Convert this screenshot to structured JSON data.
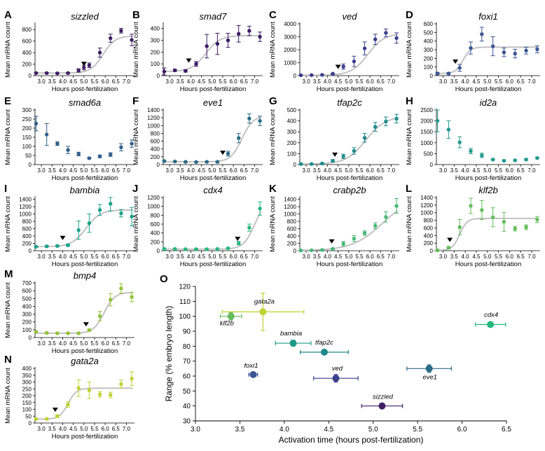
{
  "chart_data": [
    {
      "id": "A",
      "panel_label": "A",
      "gene": "sizzled",
      "type": "scatter",
      "color": "#3f1f62",
      "xlabel": "Hours post-fertilization",
      "ylabel": "Mean mRNA count",
      "xticks": [
        "3.0",
        "3.5",
        "4.0",
        "4.5",
        "5.0",
        "5.5",
        "6.0",
        "6.5",
        "7.0"
      ],
      "yticks": [
        "0",
        "200",
        "400",
        "600",
        "800"
      ],
      "ylim": [
        0,
        900
      ],
      "x": [
        2.75,
        3.25,
        3.75,
        4.25,
        4.75,
        5.0,
        5.25,
        5.75,
        6.25,
        6.75,
        7.25
      ],
      "y": [
        45,
        45,
        40,
        45,
        90,
        140,
        180,
        400,
        650,
        780,
        620
      ],
      "err": [
        8,
        8,
        8,
        10,
        30,
        40,
        40,
        80,
        70,
        40,
        100
      ],
      "fit": {
        "low": 45,
        "high": 690,
        "mid": 5.9,
        "k": 3.5
      },
      "activation": 5.1
    },
    {
      "id": "B",
      "panel_label": "B",
      "gene": "smad7",
      "type": "scatter",
      "color": "#3c1b66",
      "xlabel": "Hours post-fertilization",
      "ylabel": "Mean mRNA count",
      "xticks": [
        "3.0",
        "3.5",
        "4.0",
        "4.5",
        "5.0",
        "5.5",
        "6.0",
        "6.5",
        "7.0"
      ],
      "yticks": [
        "0",
        "100",
        "200",
        "300",
        "400"
      ],
      "ylim": [
        0,
        440
      ],
      "x": [
        2.75,
        3.25,
        3.75,
        4.25,
        4.75,
        5.25,
        5.75,
        6.25,
        6.75,
        7.25
      ],
      "y": [
        35,
        45,
        40,
        100,
        250,
        270,
        300,
        355,
        380,
        330
      ],
      "err": [
        30,
        10,
        10,
        20,
        100,
        90,
        60,
        70,
        40,
        40
      ],
      "fit": {
        "low": 35,
        "high": 340,
        "mid": 4.7,
        "k": 3.0
      },
      "activation": 4.0
    },
    {
      "id": "C",
      "panel_label": "C",
      "gene": "ved",
      "type": "scatter",
      "color": "#3a3f8c",
      "xlabel": "Hours post-fertilization",
      "ylabel": "Mean mRNA count",
      "xticks": [
        "3.0",
        "3.5",
        "4.0",
        "4.5",
        "5.0",
        "5.5",
        "6.0",
        "6.5",
        "7.0"
      ],
      "yticks": [
        "0",
        "1000",
        "2000",
        "3000",
        "4000"
      ],
      "ylim": [
        0,
        4000
      ],
      "x": [
        2.75,
        3.25,
        3.75,
        4.25,
        4.75,
        5.25,
        5.75,
        6.25,
        6.75,
        7.25
      ],
      "y": [
        30,
        40,
        60,
        150,
        700,
        1100,
        2100,
        2800,
        3300,
        2900
      ],
      "err": [
        10,
        10,
        20,
        40,
        200,
        400,
        500,
        400,
        300,
        400
      ],
      "fit": {
        "low": 30,
        "high": 3250,
        "mid": 5.9,
        "k": 2.6
      },
      "activation": 4.6
    },
    {
      "id": "D",
      "panel_label": "D",
      "gene": "foxi1",
      "type": "scatter",
      "color": "#3a5592",
      "xlabel": "Hours post-fertilization",
      "ylabel": "Mean mRNA count",
      "xticks": [
        "3.0",
        "3.5",
        "4.0",
        "4.5",
        "5.0",
        "5.5",
        "6.0",
        "6.5",
        "7.0"
      ],
      "yticks": [
        "0",
        "100",
        "200",
        "300",
        "400",
        "500",
        "600"
      ],
      "ylim": [
        0,
        600
      ],
      "x": [
        2.75,
        3.25,
        3.75,
        4.25,
        4.75,
        5.25,
        5.75,
        6.25,
        6.75,
        7.25
      ],
      "y": [
        25,
        25,
        90,
        320,
        480,
        340,
        270,
        255,
        290,
        305
      ],
      "err": [
        10,
        10,
        40,
        70,
        80,
        110,
        50,
        50,
        40,
        40
      ],
      "fit": {
        "low": 25,
        "high": 330,
        "mid": 3.9,
        "k": 6.0
      },
      "activation": 3.65
    },
    {
      "id": "E",
      "panel_label": "E",
      "gene": "smad6a",
      "type": "scatter",
      "color": "#325f8a",
      "xlabel": "Hours post-fertilization",
      "ylabel": "Mean mRNA count",
      "xticks": [
        "3.0",
        "3.5",
        "4.0",
        "4.5",
        "5.0",
        "5.5",
        "6.0",
        "6.5",
        "7.0"
      ],
      "yticks": [
        "0",
        "50",
        "100",
        "150",
        "200",
        "250",
        "300"
      ],
      "ylim": [
        0,
        300
      ],
      "x": [
        2.75,
        3.25,
        3.75,
        4.25,
        4.75,
        5.25,
        5.75,
        6.25,
        6.75,
        7.25
      ],
      "y": [
        225,
        165,
        115,
        80,
        58,
        35,
        45,
        55,
        95,
        115
      ],
      "err": [
        40,
        60,
        10,
        20,
        10,
        4,
        8,
        10,
        20,
        20
      ],
      "fit": null,
      "activation": null
    },
    {
      "id": "F",
      "panel_label": "F",
      "gene": "eve1",
      "type": "scatter",
      "color": "#2b6a85",
      "xlabel": "Hours post-fertilization",
      "ylabel": "Mean mRNA count",
      "xticks": [
        "3.0",
        "3.5",
        "4.0",
        "4.5",
        "5.0",
        "5.5",
        "6.0",
        "6.5",
        "7.0"
      ],
      "yticks": [
        "0",
        "200",
        "400",
        "600",
        "800",
        "1000",
        "1200",
        "1400"
      ],
      "ylim": [
        0,
        1400
      ],
      "x": [
        2.75,
        3.25,
        3.75,
        4.25,
        4.75,
        5.25,
        5.75,
        6.25,
        6.75,
        7.25
      ],
      "y": [
        90,
        80,
        70,
        65,
        70,
        70,
        280,
        680,
        1180,
        1120
      ],
      "err": [
        10,
        10,
        10,
        10,
        10,
        20,
        60,
        120,
        120,
        120
      ],
      "fit": {
        "low": 70,
        "high": 1250,
        "mid": 6.4,
        "k": 3.8
      },
      "activation": 5.6
    },
    {
      "id": "G",
      "panel_label": "G",
      "gene": "tfap2c",
      "type": "scatter",
      "color": "#1e8a8a",
      "xlabel": "Hours post-fertilization",
      "ylabel": "Mean mRNA count",
      "xticks": [
        "3.0",
        "3.5",
        "4.0",
        "4.5",
        "5.0",
        "5.5",
        "6.0",
        "6.5",
        "7.0"
      ],
      "yticks": [
        "0",
        "100",
        "200",
        "300",
        "400",
        "500"
      ],
      "ylim": [
        0,
        500
      ],
      "x": [
        2.75,
        3.25,
        3.75,
        4.25,
        4.75,
        5.25,
        5.75,
        6.25,
        6.75,
        7.25
      ],
      "y": [
        5,
        5,
        10,
        35,
        75,
        125,
        245,
        345,
        395,
        420
      ],
      "err": [
        2,
        2,
        4,
        10,
        20,
        30,
        40,
        40,
        40,
        40
      ],
      "fit": {
        "low": 5,
        "high": 440,
        "mid": 5.8,
        "k": 2.2
      },
      "activation": 4.45
    },
    {
      "id": "H",
      "panel_label": "H",
      "gene": "id2a",
      "type": "scatter",
      "color": "#219a8c",
      "xlabel": "Hours post-fertilization",
      "ylabel": "Mean mRNA count",
      "xticks": [
        "3.0",
        "3.5",
        "4.0",
        "4.5",
        "5.0",
        "5.5",
        "6.0",
        "6.5",
        "7.0"
      ],
      "yticks": [
        "0",
        "500",
        "1000",
        "1500",
        "2000",
        "2500"
      ],
      "ylim": [
        0,
        2500
      ],
      "x": [
        2.75,
        3.25,
        3.75,
        4.25,
        4.75,
        5.25,
        5.75,
        6.25,
        6.75,
        7.25
      ],
      "y": [
        2000,
        1600,
        1020,
        620,
        420,
        230,
        175,
        195,
        230,
        300
      ],
      "err": [
        500,
        400,
        250,
        120,
        100,
        30,
        30,
        30,
        40,
        40
      ],
      "fit": null,
      "activation": null
    },
    {
      "id": "I",
      "panel_label": "I",
      "gene": "bambia",
      "type": "scatter",
      "color": "#1aa289",
      "xlabel": "Hours post-fertilization",
      "ylabel": "Mean mRNA count",
      "xticks": [
        "3.0",
        "3.5",
        "4.0",
        "4.5",
        "5.0",
        "5.5",
        "6.0",
        "6.5",
        "7.0"
      ],
      "yticks": [
        "0",
        "200",
        "400",
        "600",
        "800",
        "1000",
        "1200",
        "1400"
      ],
      "ylim": [
        0,
        1450
      ],
      "x": [
        2.75,
        3.25,
        3.75,
        4.25,
        4.75,
        5.25,
        5.75,
        6.25,
        6.75,
        7.25
      ],
      "y": [
        110,
        120,
        130,
        150,
        560,
        750,
        1110,
        1280,
        1020,
        930
      ],
      "err": [
        20,
        20,
        20,
        30,
        250,
        250,
        150,
        200,
        100,
        250
      ],
      "fit": {
        "low": 110,
        "high": 1110,
        "mid": 5.1,
        "k": 3.0
      },
      "activation": 4.1
    },
    {
      "id": "J",
      "panel_label": "J",
      "gene": "cdx4",
      "type": "scatter",
      "color": "#27b77e",
      "xlabel": "Hours post-fertilization",
      "ylabel": "Mean mRNA count",
      "xticks": [
        "3.0",
        "3.5",
        "4.0",
        "4.5",
        "5.0",
        "5.5",
        "6.0",
        "6.5",
        "7.0"
      ],
      "yticks": [
        "0",
        "200",
        "400",
        "600",
        "800",
        "1000",
        "1200"
      ],
      "ylim": [
        0,
        1200
      ],
      "x": [
        2.75,
        3.25,
        3.75,
        4.25,
        4.75,
        5.25,
        5.75,
        6.25,
        6.75,
        7.25
      ],
      "y": [
        40,
        40,
        35,
        35,
        35,
        40,
        55,
        170,
        520,
        950
      ],
      "err": [
        8,
        8,
        8,
        8,
        8,
        8,
        15,
        40,
        80,
        150
      ],
      "fit": {
        "low": 35,
        "high": 1150,
        "mid": 7.0,
        "k": 3.8
      },
      "activation": 6.3
    },
    {
      "id": "K",
      "panel_label": "K",
      "gene": "crabp2b",
      "type": "scatter",
      "color": "#46b876",
      "xlabel": "Hours post-fertilization",
      "ylabel": "Mean mRNA count",
      "xticks": [
        "3.0",
        "3.5",
        "4.0",
        "4.5",
        "5.0",
        "5.5",
        "6.0",
        "6.5",
        "7.0"
      ],
      "yticks": [
        "0",
        "200",
        "400",
        "600",
        "800",
        "1000",
        "1200",
        "1400"
      ],
      "ylim": [
        0,
        1450
      ],
      "x": [
        2.75,
        3.25,
        3.75,
        4.25,
        4.75,
        5.25,
        5.75,
        6.25,
        6.75,
        7.25
      ],
      "y": [
        5,
        10,
        20,
        50,
        190,
        330,
        480,
        680,
        920,
        1220
      ],
      "err": [
        2,
        2,
        6,
        15,
        60,
        80,
        60,
        80,
        140,
        200
      ],
      "fit": {
        "low": 5,
        "high": 1500,
        "mid": 6.6,
        "k": 1.4
      },
      "activation": 4.3
    },
    {
      "id": "L",
      "panel_label": "L",
      "gene": "klf2b",
      "type": "scatter",
      "color": "#64bc5a",
      "xlabel": "Hours post-fertilization",
      "ylabel": "Mean mRNA count",
      "xticks": [
        "3.0",
        "3.5",
        "4.0",
        "4.5",
        "5.0",
        "5.5",
        "6.0",
        "6.5",
        "7.0"
      ],
      "yticks": [
        "0",
        "200",
        "400",
        "600",
        "800",
        "1000",
        "1200",
        "1400"
      ],
      "ylim": [
        0,
        1400
      ],
      "x": [
        2.75,
        3.25,
        3.75,
        4.25,
        4.75,
        5.25,
        5.75,
        6.25,
        6.75,
        7.25
      ],
      "y": [
        10,
        80,
        620,
        1180,
        1070,
        880,
        760,
        580,
        620,
        820
      ],
      "err": [
        4,
        30,
        200,
        200,
        250,
        250,
        250,
        60,
        60,
        80
      ],
      "fit": {
        "low": 10,
        "high": 850,
        "mid": 3.75,
        "k": 6.0
      },
      "activation": 3.4
    },
    {
      "id": "M",
      "panel_label": "M",
      "gene": "bmp4",
      "type": "scatter",
      "color": "#94c23a",
      "xlabel": "Hours post-fertilization",
      "ylabel": "Mean mRNA count",
      "xticks": [
        "3.0",
        "3.5",
        "4.0",
        "4.5",
        "5.0",
        "5.5",
        "6.0",
        "6.5",
        "7.0"
      ],
      "yticks": [
        "0",
        "100",
        "200",
        "300",
        "400",
        "500",
        "600",
        "700"
      ],
      "ylim": [
        0,
        700
      ],
      "x": [
        2.75,
        3.25,
        3.75,
        4.25,
        4.75,
        5.25,
        5.75,
        6.25,
        6.75,
        7.25
      ],
      "y": [
        75,
        60,
        55,
        55,
        55,
        95,
        275,
        485,
        630,
        520
      ],
      "err": [
        10,
        8,
        8,
        8,
        8,
        15,
        60,
        80,
        60,
        60
      ],
      "fit": {
        "low": 55,
        "high": 580,
        "mid": 5.95,
        "k": 4.0
      },
      "activation": 5.2
    },
    {
      "id": "N",
      "panel_label": "N",
      "gene": "gata2a",
      "type": "scatter",
      "color": "#bed233",
      "xlabel": "Hours post-fertilization",
      "ylabel": "Mean mRNA count",
      "xticks": [
        "3.0",
        "3.5",
        "4.0",
        "4.5",
        "5.0",
        "5.5",
        "6.0",
        "6.5",
        "7.0"
      ],
      "yticks": [
        "0",
        "50",
        "100",
        "150",
        "200",
        "250",
        "300",
        "350",
        "400"
      ],
      "ylim": [
        0,
        400
      ],
      "x": [
        2.75,
        3.25,
        3.75,
        4.25,
        4.75,
        5.25,
        5.75,
        6.25,
        6.75,
        7.25
      ],
      "y": [
        30,
        30,
        50,
        135,
        255,
        240,
        210,
        205,
        285,
        325
      ],
      "err": [
        5,
        5,
        10,
        20,
        60,
        60,
        20,
        20,
        30,
        50
      ],
      "fit": {
        "low": 28,
        "high": 255,
        "mid": 4.25,
        "k": 5.0
      },
      "activation": 3.75
    }
  ],
  "summary_chart": {
    "panel_label": "O",
    "type": "scatter",
    "xlabel": "Activation time (hours post-fertilization)",
    "ylabel": "Range (% embryo length)",
    "xlim": [
      3.0,
      6.5
    ],
    "ylim": [
      30,
      120
    ],
    "xticks": [
      "3.0",
      "3.5",
      "4.0",
      "4.5",
      "5.0",
      "5.5",
      "6.0",
      "6.5"
    ],
    "yticks": [
      "30",
      "40",
      "50",
      "60",
      "70",
      "80",
      "90",
      "100",
      "110",
      "120"
    ],
    "points": [
      {
        "label": "klf2b",
        "x": 3.4,
        "y": 100,
        "xerr": 0.12,
        "yerr": 2.5,
        "color": "#64bc5a"
      },
      {
        "label": "gata2a",
        "x": 3.76,
        "y": 103,
        "xerr": 0.46,
        "yerr": 12.5,
        "color": "#bed233"
      },
      {
        "label": "bambia",
        "x": 4.1,
        "y": 82,
        "xerr": 0.2,
        "yerr": 2,
        "color": "#1e9a86"
      },
      {
        "label": "tfap2c",
        "x": 4.45,
        "y": 76,
        "xerr": 0.27,
        "yerr": 1.5,
        "color": "#1e8a8a"
      },
      {
        "label": "foxi1",
        "x": 3.65,
        "y": 61,
        "xerr": 0.05,
        "yerr": 1.5,
        "color": "#3a5592"
      },
      {
        "label": "ved",
        "x": 4.58,
        "y": 58.5,
        "xerr": 0.25,
        "yerr": 2.5,
        "color": "#3a3f8c"
      },
      {
        "label": "sizzled",
        "x": 5.1,
        "y": 40,
        "xerr": 0.23,
        "yerr": 1,
        "color": "#3f1f62"
      },
      {
        "label": "eve1",
        "x": 5.63,
        "y": 65,
        "xerr": 0.25,
        "yerr": 2.5,
        "color": "#2b6a85"
      },
      {
        "label": "cdx4",
        "x": 6.32,
        "y": 94.5,
        "xerr": 0.17,
        "yerr": 1.5,
        "color": "#27b77e"
      }
    ]
  }
}
